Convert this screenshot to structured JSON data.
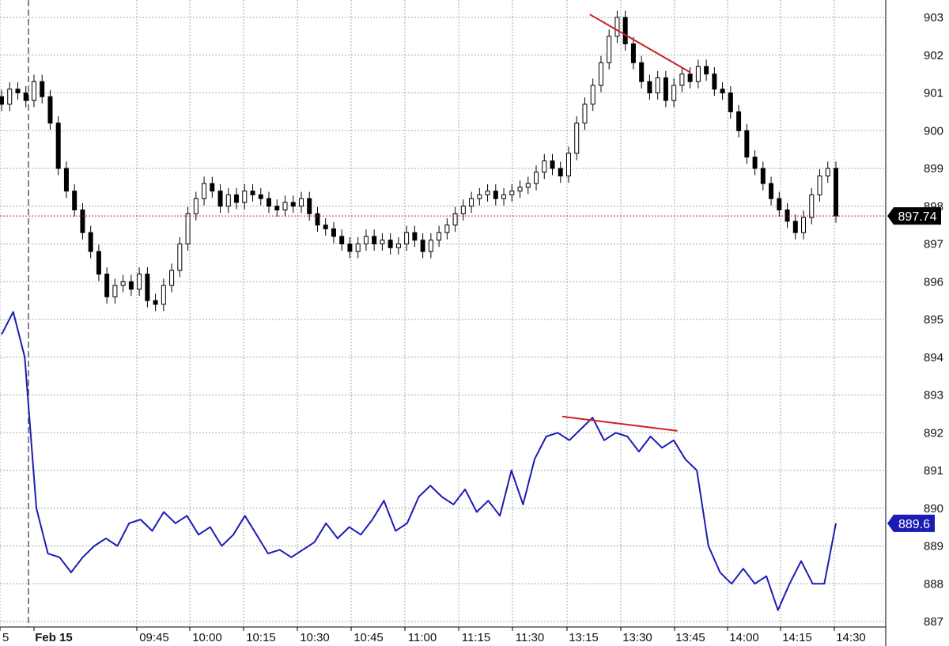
{
  "chart_data": {
    "type": "line",
    "title": "",
    "grid": true,
    "ylim": [
      886.5,
      903.3
    ],
    "y_ticks": [
      "903",
      "902",
      "901",
      "900",
      "899",
      "898",
      "897",
      "896",
      "895",
      "894",
      "893",
      "892",
      "891",
      "890",
      "889",
      "888",
      "887"
    ],
    "y_tick_values": [
      903,
      902,
      901,
      900,
      899,
      898,
      897,
      896,
      895,
      894,
      893,
      892,
      891,
      890,
      889,
      888,
      887
    ],
    "x_labels": [
      "5",
      "Feb 15",
      "09:45",
      "10:00",
      "10:15",
      "10:30",
      "10:45",
      "11:00",
      "11:15",
      "11:30",
      "13:15",
      "13:30",
      "13:45",
      "14:00",
      "14:15",
      "14:30"
    ],
    "session_break": "Feb 15",
    "colors": {
      "candle": "#000000",
      "line": "#1c1cb4",
      "trendline": "#cc2222",
      "last_line": "#cc2222",
      "grid": "#a9a9a9"
    },
    "series": [
      {
        "type": "candlestick",
        "last_value": "897.74",
        "values": [
          900.7,
          901.1,
          901.0,
          900.8,
          901.3,
          900.9,
          900.2,
          899.0,
          898.4,
          897.9,
          897.3,
          896.8,
          896.2,
          895.6,
          895.9,
          896.0,
          895.8,
          896.2,
          895.5,
          895.4,
          895.9,
          896.3,
          897.0,
          897.8,
          898.2,
          898.6,
          898.4,
          898.0,
          898.3,
          898.1,
          898.4,
          898.3,
          898.2,
          898.0,
          897.9,
          898.1,
          898.0,
          898.2,
          897.8,
          897.5,
          897.4,
          897.2,
          897.0,
          896.8,
          897.0,
          897.2,
          897.0,
          897.1,
          896.9,
          897.0,
          897.3,
          897.1,
          896.8,
          897.1,
          897.3,
          897.5,
          897.8,
          898.0,
          898.2,
          898.3,
          898.4,
          898.2,
          898.3,
          898.4,
          898.5,
          898.6,
          898.9,
          899.2,
          899.0,
          898.8,
          899.4,
          900.2,
          900.7,
          901.2,
          901.8,
          902.5,
          903.0,
          902.3,
          901.8,
          901.3,
          901.0,
          901.4,
          900.8,
          901.2,
          901.5,
          901.3,
          901.7,
          901.5,
          901.1,
          901.0,
          900.5,
          900.0,
          899.3,
          899.0,
          898.6,
          898.2,
          897.9,
          897.6,
          897.3,
          897.7,
          898.3,
          898.8,
          899.0,
          897.74
        ]
      },
      {
        "type": "line",
        "name": "",
        "last_value": "889.6",
        "values": [
          894.6,
          895.2,
          894.0,
          890.0,
          888.8,
          888.7,
          888.3,
          888.7,
          889.0,
          889.2,
          889.0,
          889.6,
          889.7,
          889.4,
          889.9,
          889.6,
          889.8,
          889.3,
          889.5,
          889.0,
          889.3,
          889.8,
          889.3,
          888.8,
          888.9,
          888.7,
          888.9,
          889.1,
          889.6,
          889.2,
          889.5,
          889.3,
          889.7,
          890.2,
          889.4,
          889.6,
          890.3,
          890.6,
          890.3,
          890.1,
          890.5,
          889.9,
          890.2,
          889.8,
          891.0,
          890.1,
          891.3,
          891.9,
          892.0,
          891.8,
          892.1,
          892.4,
          891.8,
          892.0,
          891.9,
          891.5,
          891.9,
          891.6,
          891.8,
          891.3,
          891.0,
          889.0,
          888.3,
          888.0,
          888.4,
          888.0,
          888.2,
          887.3,
          888.0,
          888.6,
          888.0,
          888.0,
          889.6
        ]
      }
    ],
    "annotations": [
      {
        "type": "trendline",
        "series": "candlestick",
        "from": [
          0.705,
          903.08
        ],
        "to": [
          0.825,
          901.55
        ]
      },
      {
        "type": "trendline",
        "series": "line",
        "from": [
          0.672,
          892.43
        ],
        "to": [
          0.81,
          892.05
        ]
      }
    ]
  }
}
